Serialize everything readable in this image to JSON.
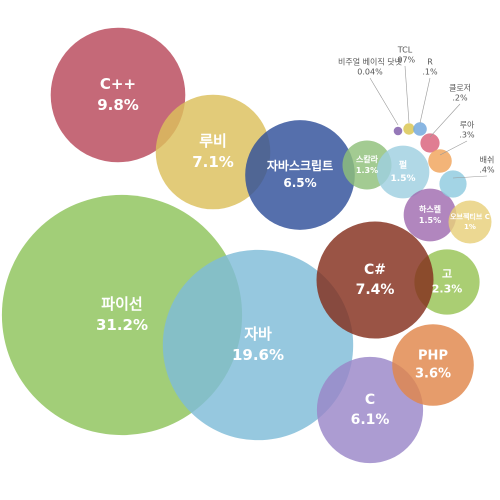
{
  "chart_data": {
    "type": "bubble",
    "categories": [
      "파이선",
      "자바",
      "C++",
      "루비",
      "자바스크립트",
      "C#",
      "C",
      "PHP",
      "고",
      "스칼라",
      "펄",
      "하스켈",
      "오브젝티브 C",
      "비주얼 베이직 닷넷",
      "TCL",
      "R",
      "클로저",
      "루아",
      "배쉬"
    ],
    "values": [
      31.2,
      19.6,
      9.8,
      7.1,
      6.5,
      7.4,
      6.1,
      3.6,
      2.3,
      1.3,
      1.5,
      1.5,
      1,
      0.04,
      0.07,
      0.1,
      0.2,
      0.3,
      0.4
    ],
    "value_labels": [
      "31.2%",
      "19.6%",
      "9.8%",
      "7.1%",
      "6.5%",
      "7.4%",
      "6.1%",
      "3.6%",
      "2.3%",
      "1.3%",
      "1.5%",
      "1.5%",
      "1%",
      "0.04%",
      ".07%",
      ".1%",
      ".2%",
      ".3%",
      ".4%"
    ],
    "colors": [
      "#8dc35a",
      "#7fbcd8",
      "#b8485a",
      "#dcc05c",
      "#2f4f9a",
      "#842e1c",
      "#9a86c8",
      "#e1864a",
      "#97c354",
      "#8fbf7a",
      "#9fcfe0",
      "#a06bb0",
      "#e8cf7a",
      "#7e5aa8",
      "#d9c54e",
      "#6fa6dc",
      "#d9607a",
      "#f0a35a",
      "#8fcadf"
    ]
  }
}
